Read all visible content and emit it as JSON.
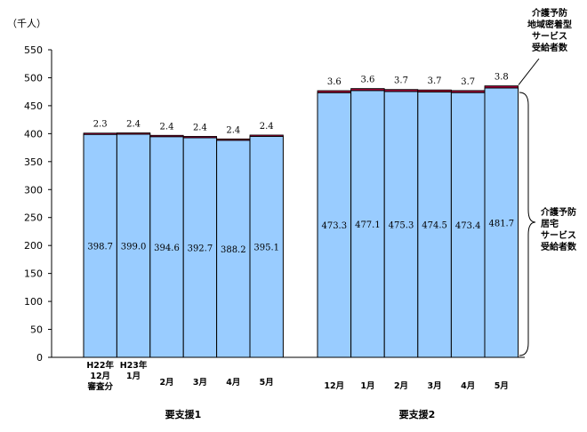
{
  "chart_data": {
    "type": "bar",
    "stacked": true,
    "unit_label": "（千人）",
    "ylim": [
      0,
      550
    ],
    "yticks": [
      0,
      50,
      100,
      150,
      200,
      250,
      300,
      350,
      400,
      450,
      500,
      550
    ],
    "colors": {
      "base": "#99ccff",
      "top": "#990033",
      "edge": "#000000"
    },
    "groups": [
      {
        "label": "要支援1",
        "categories": [
          [
            "H22年",
            "12月",
            "審査分"
          ],
          [
            "H23年",
            "1月"
          ],
          [
            "2月"
          ],
          [
            "3月"
          ],
          [
            "4月"
          ],
          [
            "5月"
          ]
        ],
        "series": [
          {
            "values": [
              398.7,
              399.0,
              394.6,
              392.7,
              388.2,
              395.1
            ]
          },
          {
            "values": [
              2.3,
              2.4,
              2.4,
              2.4,
              2.4,
              2.4
            ]
          }
        ]
      },
      {
        "label": "要支援2",
        "categories": [
          [
            "12月"
          ],
          [
            "1月"
          ],
          [
            "2月"
          ],
          [
            "3月"
          ],
          [
            "4月"
          ],
          [
            "5月"
          ]
        ],
        "series": [
          {
            "values": [
              473.3,
              477.1,
              475.3,
              474.5,
              473.4,
              481.7
            ]
          },
          {
            "values": [
              3.6,
              3.6,
              3.7,
              3.7,
              3.7,
              3.8
            ]
          }
        ]
      }
    ],
    "annotations": {
      "top_series": [
        "介護予防",
        "地域密着型",
        "サービス",
        "受給者数"
      ],
      "base_series": [
        "介護予防",
        "居宅",
        "サービス",
        "受給者数"
      ]
    }
  }
}
